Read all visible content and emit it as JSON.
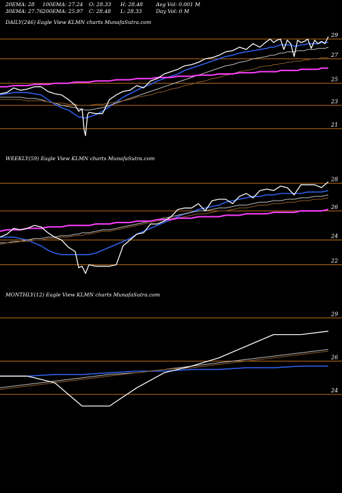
{
  "header": {
    "col1": [
      "20EMA: 28",
      "30EMA: 27.76"
    ],
    "col2": [
      "100EMA: 27.24",
      "200EMA: 25.97"
    ],
    "col3": [
      "O: 28.33",
      "C: 28.48"
    ],
    "col4": [
      "H: 28.48",
      "L: 28.33"
    ],
    "col5": [
      "Avg Vol: 0.001 M",
      "Day Vol: 0  M"
    ]
  },
  "colors": {
    "background": "#000000",
    "price": "#ffffff",
    "ema_blue": "#2f5fe8",
    "ema_magenta": "#ff40ff",
    "level_lines": "#c07020",
    "ema_light": "#bdbdbd",
    "ema_brown": "#8a5a2b"
  },
  "chart_data": [
    {
      "type": "line",
      "title": "DAILY(246) Eagle  View  KLMN  charts MunafaSutra.com",
      "ylim": [
        20,
        30
      ],
      "yticks": [
        "29",
        "27",
        "25",
        "23",
        "21"
      ],
      "levels": [
        29.0,
        27.3,
        25.2,
        23.3,
        21.3
      ],
      "x": [
        0,
        10,
        20,
        30,
        40,
        50,
        60,
        70,
        80,
        90,
        100,
        110,
        115,
        120,
        123,
        125,
        128,
        130,
        140,
        150,
        160,
        170,
        180,
        190,
        200,
        210,
        220,
        230,
        240,
        250,
        260,
        270,
        280,
        290,
        300,
        310,
        320,
        330,
        340,
        350,
        360,
        370,
        380,
        390,
        395,
        400,
        405,
        410,
        415,
        420,
        425,
        430,
        435,
        440,
        445,
        450,
        455,
        460,
        465,
        470,
        475,
        480
      ],
      "series": [
        {
          "name": "Price",
          "values": [
            24.3,
            24.4,
            24.8,
            24.6,
            24.7,
            24.9,
            24.9,
            24.5,
            24.3,
            24.2,
            23.8,
            23.3,
            22.8,
            23.0,
            21.2,
            20.7,
            22.5,
            22.7,
            22.6,
            22.6,
            23.8,
            24.2,
            24.5,
            24.6,
            25.0,
            24.8,
            25.4,
            25.6,
            26.0,
            26.2,
            26.4,
            26.7,
            26.8,
            27.0,
            27.3,
            27.4,
            27.6,
            27.9,
            28.0,
            28.3,
            28.1,
            28.6,
            28.3,
            28.8,
            29.0,
            28.7,
            28.9,
            29.0,
            28.1,
            28.9,
            28.6,
            27.5,
            28.9,
            28.7,
            28.8,
            29.0,
            28.2,
            28.9,
            28.6,
            28.8,
            28.6,
            29.2
          ]
        },
        {
          "name": "EMA blue",
          "values": [
            24.2,
            24.3,
            24.4,
            24.4,
            24.4,
            24.3,
            24.2,
            23.8,
            23.4,
            23.1,
            22.9,
            22.5,
            22.3,
            22.3,
            22.2,
            22.2,
            22.3,
            22.3,
            22.5,
            22.8,
            23.2,
            23.6,
            24.0,
            24.3,
            24.6,
            24.9,
            25.1,
            25.4,
            25.6,
            25.8,
            26.0,
            26.3,
            26.5,
            26.7,
            26.9,
            27.1,
            27.3,
            27.5,
            27.6,
            27.8,
            27.9,
            28.0,
            28.1,
            28.2,
            28.3,
            28.3,
            28.4,
            28.5,
            28.5,
            28.5,
            28.5,
            28.4,
            28.4,
            28.5,
            28.5,
            28.6,
            28.6,
            28.6,
            28.6,
            28.7,
            28.7,
            28.7
          ]
        },
        {
          "name": "EMA light",
          "values": [
            24.0,
            24.0,
            24.0,
            24.0,
            23.9,
            23.9,
            23.8,
            23.6,
            23.5,
            23.3,
            23.2,
            23.1,
            23.0,
            23.0,
            22.9,
            22.9,
            22.9,
            22.9,
            23.0,
            23.1,
            23.3,
            23.5,
            23.7,
            23.9,
            24.1,
            24.3,
            24.5,
            24.7,
            24.9,
            25.1,
            25.3,
            25.5,
            25.7,
            25.9,
            26.1,
            26.3,
            26.5,
            26.7,
            26.8,
            27.0,
            27.1,
            27.3,
            27.4,
            27.5,
            27.6,
            27.6,
            27.7,
            27.8,
            27.8,
            27.9,
            27.9,
            27.9,
            28.0,
            28.0,
            28.0,
            28.1,
            28.1,
            28.1,
            28.2,
            28.2,
            28.2,
            28.3
          ]
        },
        {
          "name": "EMA brown",
          "values": [
            23.8,
            23.8,
            23.8,
            23.8,
            23.7,
            23.7,
            23.7,
            23.6,
            23.5,
            23.5,
            23.4,
            23.4,
            23.3,
            23.3,
            23.3,
            23.3,
            23.3,
            23.3,
            23.4,
            23.4,
            23.5,
            23.6,
            23.7,
            23.8,
            24.0,
            24.1,
            24.2,
            24.4,
            24.5,
            24.7,
            24.8,
            25.0,
            25.1,
            25.3,
            25.4,
            25.6,
            25.7,
            25.9,
            26.0,
            26.2,
            26.3,
            26.4,
            26.6,
            26.7,
            26.7,
            26.8,
            26.8,
            26.9,
            26.9,
            27.0,
            27.0,
            27.1,
            27.1,
            27.1,
            27.2,
            27.2,
            27.3,
            27.3,
            27.3,
            27.4,
            27.4,
            27.4
          ]
        },
        {
          "name": "EMA magenta",
          "values": [
            24.9,
            24.9,
            25.0,
            25.0,
            25.0,
            25.1,
            25.1,
            25.1,
            25.2,
            25.2,
            25.2,
            25.3,
            25.3,
            25.3,
            25.3,
            25.3,
            25.3,
            25.3,
            25.4,
            25.4,
            25.4,
            25.5,
            25.5,
            25.5,
            25.6,
            25.6,
            25.6,
            25.7,
            25.7,
            25.7,
            25.8,
            25.8,
            25.8,
            25.9,
            25.9,
            25.9,
            26.0,
            26.0,
            26.0,
            26.1,
            26.1,
            26.1,
            26.2,
            26.2,
            26.2,
            26.2,
            26.2,
            26.3,
            26.3,
            26.3,
            26.3,
            26.3,
            26.3,
            26.4,
            26.4,
            26.4,
            26.4,
            26.4,
            26.4,
            26.5,
            26.5,
            26.5
          ]
        }
      ]
    },
    {
      "type": "line",
      "title": "WEEKLY(59) Eagle  View  KLMN  charts MunafaSutra.com",
      "ylim": [
        21,
        29
      ],
      "yticks": [
        "28",
        "26",
        "24",
        "22"
      ],
      "levels": [
        27.7,
        25.8,
        23.8,
        22.1
      ],
      "x": [
        0,
        10,
        20,
        30,
        40,
        50,
        60,
        70,
        80,
        90,
        100,
        110,
        115,
        120,
        125,
        130,
        140,
        150,
        160,
        170,
        180,
        190,
        200,
        210,
        220,
        230,
        240,
        250,
        260,
        270,
        280,
        290,
        300,
        310,
        320,
        330,
        340,
        350,
        360,
        370,
        380,
        390,
        400,
        410,
        420,
        430,
        440,
        450,
        460,
        470,
        480
      ],
      "series": [
        {
          "name": "Price",
          "values": [
            24.0,
            24.2,
            24.6,
            24.5,
            24.6,
            24.8,
            24.7,
            24.3,
            24.0,
            23.8,
            23.3,
            23.0,
            21.9,
            22.0,
            21.5,
            22.1,
            22.0,
            22.0,
            22.0,
            22.1,
            23.4,
            23.8,
            24.2,
            24.3,
            24.9,
            24.9,
            25.1,
            25.4,
            25.9,
            26.0,
            26.0,
            26.3,
            25.8,
            26.5,
            26.6,
            26.6,
            26.3,
            26.8,
            27.0,
            26.7,
            27.2,
            27.3,
            27.2,
            27.5,
            27.4,
            26.9,
            27.6,
            27.6,
            27.6,
            27.4,
            27.8
          ]
        },
        {
          "name": "EMA blue",
          "values": [
            24.0,
            24.0,
            24.0,
            23.9,
            23.8,
            23.6,
            23.4,
            23.1,
            22.9,
            22.8,
            22.8,
            22.8,
            22.8,
            22.8,
            22.8,
            22.8,
            22.9,
            23.1,
            23.3,
            23.5,
            23.7,
            23.9,
            24.2,
            24.4,
            24.6,
            24.8,
            25.0,
            25.2,
            25.4,
            25.6,
            25.7,
            25.9,
            26.0,
            26.1,
            26.2,
            26.4,
            26.5,
            26.6,
            26.7,
            26.8,
            26.8,
            26.9,
            26.9,
            27.0,
            27.0,
            27.0,
            27.0,
            27.1,
            27.1,
            27.1,
            27.2
          ]
        },
        {
          "name": "EMA light",
          "values": [
            23.6,
            23.6,
            23.7,
            23.7,
            23.8,
            23.9,
            23.9,
            24.0,
            24.0,
            24.1,
            24.1,
            24.2,
            24.2,
            24.3,
            24.3,
            24.3,
            24.4,
            24.5,
            24.5,
            24.6,
            24.7,
            24.8,
            24.9,
            25.0,
            25.1,
            25.2,
            25.3,
            25.4,
            25.5,
            25.6,
            25.7,
            25.8,
            25.8,
            25.9,
            26.0,
            26.0,
            26.1,
            26.2,
            26.2,
            26.3,
            26.4,
            26.4,
            26.5,
            26.5,
            26.6,
            26.6,
            26.7,
            26.7,
            26.8,
            26.8,
            26.9
          ]
        },
        {
          "name": "EMA brown",
          "values": [
            23.5,
            23.6,
            23.6,
            23.7,
            23.7,
            23.8,
            23.8,
            23.9,
            23.9,
            24.0,
            24.0,
            24.1,
            24.1,
            24.1,
            24.2,
            24.2,
            24.3,
            24.4,
            24.4,
            24.5,
            24.6,
            24.7,
            24.8,
            24.9,
            25.0,
            25.1,
            25.2,
            25.3,
            25.3,
            25.4,
            25.5,
            25.6,
            25.6,
            25.7,
            25.8,
            25.8,
            25.9,
            26.0,
            26.0,
            26.1,
            26.2,
            26.2,
            26.3,
            26.3,
            26.4,
            26.4,
            26.5,
            26.5,
            26.6,
            26.6,
            26.7
          ]
        },
        {
          "name": "EMA magenta",
          "values": [
            24.4,
            24.5,
            24.5,
            24.5,
            24.6,
            24.6,
            24.6,
            24.7,
            24.7,
            24.7,
            24.8,
            24.8,
            24.8,
            24.8,
            24.8,
            24.8,
            24.9,
            24.9,
            24.9,
            25.0,
            25.0,
            25.0,
            25.1,
            25.1,
            25.1,
            25.2,
            25.2,
            25.2,
            25.3,
            25.3,
            25.3,
            25.4,
            25.4,
            25.4,
            25.4,
            25.5,
            25.5,
            25.5,
            25.6,
            25.6,
            25.6,
            25.6,
            25.7,
            25.7,
            25.7,
            25.7,
            25.8,
            25.8,
            25.8,
            25.8,
            25.9
          ]
        }
      ]
    },
    {
      "type": "line",
      "title": "MONTHLY(12) Eagle  View  KLMN  charts MunafaSutra.com",
      "ylim": [
        23,
        30
      ],
      "yticks": [
        "29",
        "26",
        "24"
      ],
      "levels": [
        29.0,
        26.4,
        24.4
      ],
      "x": [
        0,
        40,
        80,
        120,
        160,
        200,
        240,
        280,
        320,
        360,
        400,
        440,
        480
      ],
      "series": [
        {
          "name": "Price",
          "values": [
            25.5,
            25.5,
            25.1,
            23.7,
            23.7,
            24.8,
            25.7,
            26.1,
            26.6,
            27.3,
            28.0,
            28.0,
            28.2
          ]
        },
        {
          "name": "EMA blue",
          "values": [
            25.5,
            25.5,
            25.6,
            25.6,
            25.7,
            25.8,
            25.8,
            25.9,
            25.9,
            26.0,
            26.0,
            26.1,
            26.1
          ]
        },
        {
          "name": "EMA light",
          "values": [
            24.8,
            25.0,
            25.2,
            25.4,
            25.6,
            25.7,
            25.9,
            26.1,
            26.3,
            26.5,
            26.7,
            26.9,
            27.1
          ]
        },
        {
          "name": "EMA brown",
          "values": [
            24.7,
            24.9,
            25.1,
            25.3,
            25.5,
            25.7,
            25.9,
            26.0,
            26.2,
            26.4,
            26.6,
            26.8,
            27.0
          ]
        }
      ]
    }
  ]
}
